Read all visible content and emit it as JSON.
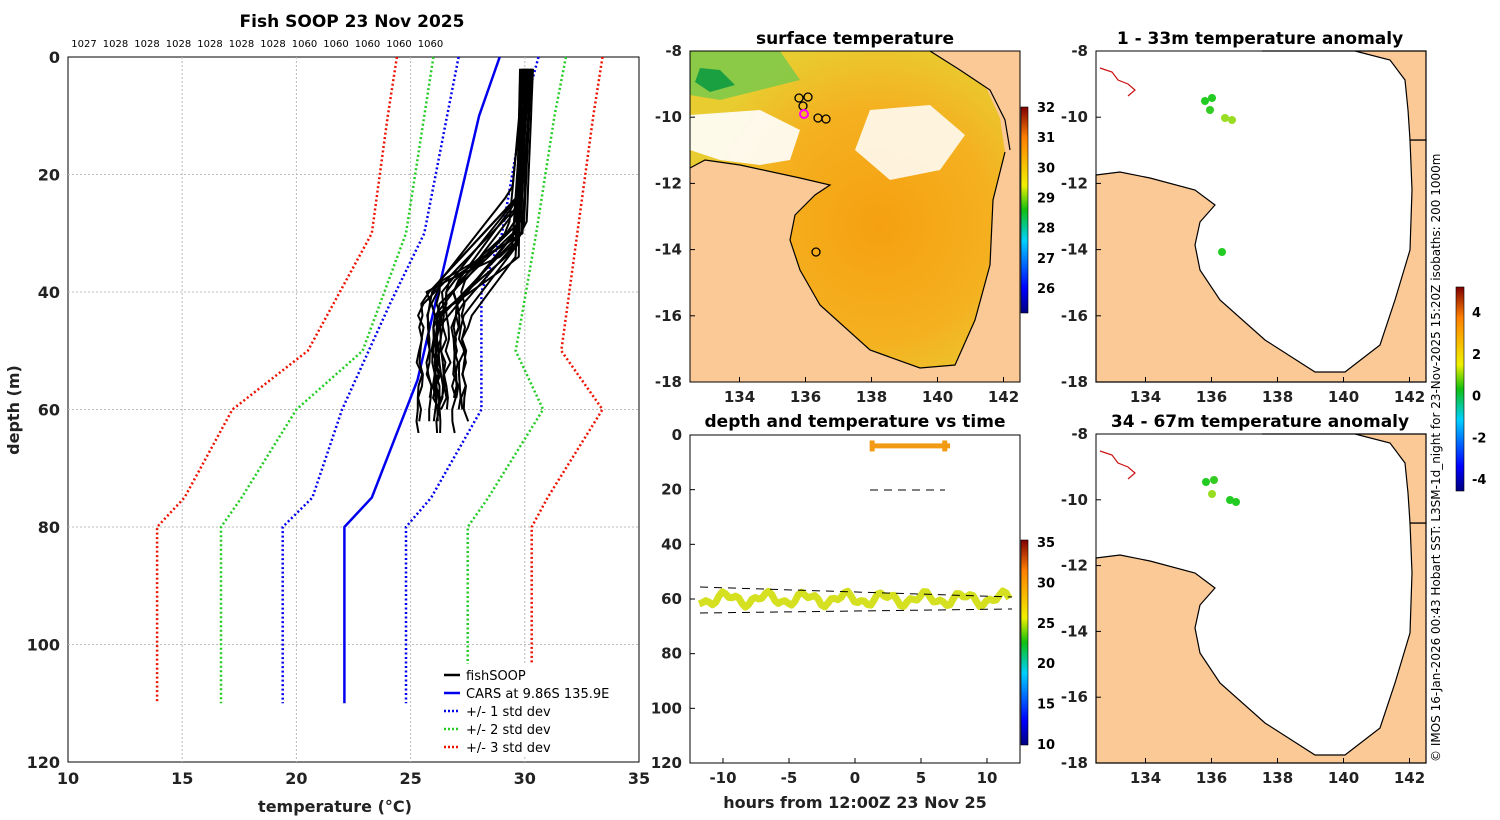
{
  "chart_data": [
    {
      "type": "line",
      "title": "Fish SOOP 23 Nov 2025",
      "xlabel": "temperature",
      "xlabel_unit": "(°C)",
      "ylabel": "depth (m)",
      "xlim": [
        10,
        35
      ],
      "ylim": [
        0,
        120
      ],
      "xticks": [
        "10",
        "15",
        "20",
        "25",
        "30",
        "35"
      ],
      "yticks": [
        "0",
        "20",
        "40",
        "60",
        "80",
        "100",
        "120"
      ],
      "top_labels": [
        "1027",
        "1028",
        "1028",
        "1028",
        "1028",
        "1028",
        "1028",
        "1060",
        "1060",
        "1060",
        "1060",
        "1060"
      ],
      "legend": [
        "fishSOOP",
        "CARS at 9.86S 135.9E",
        "+/- 1 std dev",
        "+/- 2 std dev",
        "+/- 3 std dev"
      ],
      "series": [
        {
          "name": "CARS at 9.86S 135.9E",
          "color": "#0000ee",
          "points": [
            [
              28.9,
              0
            ],
            [
              28.0,
              10
            ],
            [
              26.8,
              30
            ],
            [
              25.3,
              55
            ],
            [
              23.3,
              75
            ],
            [
              22.1,
              80
            ],
            [
              22.1,
              110
            ]
          ]
        },
        {
          "name": "CARS -1 std",
          "color": "#0000ee",
          "points": [
            [
              27.1,
              0
            ],
            [
              26.6,
              10
            ],
            [
              25.6,
              30
            ],
            [
              24.1,
              42
            ],
            [
              22.0,
              60
            ],
            [
              20.7,
              75
            ],
            [
              19.4,
              80
            ],
            [
              19.4,
              110
            ]
          ]
        },
        {
          "name": "CARS +1 std",
          "color": "#0000ee",
          "points": [
            [
              30.6,
              0
            ],
            [
              29.9,
              10
            ],
            [
              29.0,
              30
            ],
            [
              28.1,
              40
            ],
            [
              28.1,
              60
            ],
            [
              25.9,
              75
            ],
            [
              24.8,
              80
            ],
            [
              24.8,
              110
            ]
          ]
        },
        {
          "name": "CARS -2 std",
          "color": "#22cc22",
          "points": [
            [
              26.0,
              0
            ],
            [
              25.6,
              10
            ],
            [
              24.8,
              30
            ],
            [
              22.9,
              50
            ],
            [
              20.0,
              60
            ],
            [
              17.6,
              75
            ],
            [
              16.7,
              80
            ],
            [
              16.7,
              110
            ]
          ]
        },
        {
          "name": "CARS +2 std",
          "color": "#22cc22",
          "points": [
            [
              31.8,
              0
            ],
            [
              31.3,
              10
            ],
            [
              30.5,
              30
            ],
            [
              29.6,
              50
            ],
            [
              30.8,
              60
            ],
            [
              28.4,
              75
            ],
            [
              27.5,
              80
            ],
            [
              27.5,
              110
            ]
          ]
        },
        {
          "name": "CARS -3 std",
          "color": "#ee1100",
          "points": [
            [
              24.4,
              0
            ],
            [
              24.0,
              10
            ],
            [
              23.3,
              30
            ],
            [
              20.5,
              50
            ],
            [
              17.2,
              60
            ],
            [
              15.1,
              75
            ],
            [
              13.9,
              80
            ],
            [
              13.9,
              110
            ]
          ]
        },
        {
          "name": "CARS +3 std",
          "color": "#ee1100",
          "points": [
            [
              33.4,
              0
            ],
            [
              33.0,
              10
            ],
            [
              32.3,
              30
            ],
            [
              31.6,
              50
            ],
            [
              33.4,
              60
            ],
            [
              31.0,
              75
            ],
            [
              30.3,
              80
            ],
            [
              30.3,
              110
            ]
          ]
        }
      ]
    },
    {
      "type": "heatmap",
      "title": "surface temperature",
      "xticks": [
        "134",
        "136",
        "138",
        "140",
        "142"
      ],
      "yticks": [
        "-8",
        "-10",
        "-12",
        "-14",
        "-16",
        "-18"
      ],
      "colorbar_ticks": [
        "32",
        "31",
        "30",
        "29",
        "28",
        "27",
        "26"
      ]
    },
    {
      "type": "scatter",
      "title": "depth and temperature vs time",
      "xlabel": "hours from 12:00Z 23 Nov 25",
      "xlim": [
        -12.5,
        12.5
      ],
      "ylim": [
        0,
        120
      ],
      "xticks": [
        "-10",
        "-5",
        "0",
        "5",
        "10"
      ],
      "yticks": [
        "0",
        "20",
        "40",
        "60",
        "80",
        "100",
        "120"
      ],
      "colorbar_ticks": [
        "35",
        "30",
        "25",
        "20",
        "15",
        "10"
      ]
    },
    {
      "type": "scatter",
      "title": "1 - 33m temperature anomaly",
      "xticks": [
        "134",
        "136",
        "138",
        "140",
        "142"
      ],
      "yticks": [
        "-8",
        "-10",
        "-12",
        "-14",
        "-16",
        "-18"
      ]
    },
    {
      "type": "scatter",
      "title": "34 - 67m temperature anomaly",
      "xticks": [
        "134",
        "136",
        "138",
        "140",
        "142"
      ],
      "yticks": [
        "-8",
        "-10",
        "-12",
        "-14",
        "-16",
        "-18"
      ],
      "colorbar_ticks": [
        "4",
        "2",
        "0",
        "-2",
        "-4"
      ]
    }
  ],
  "credit": "© IMOS 16-Jan-2026 00:43 Hobart SST: L3SM-1d_night for 23-Nov-2025 15:20Z isobaths: 200  1000m"
}
